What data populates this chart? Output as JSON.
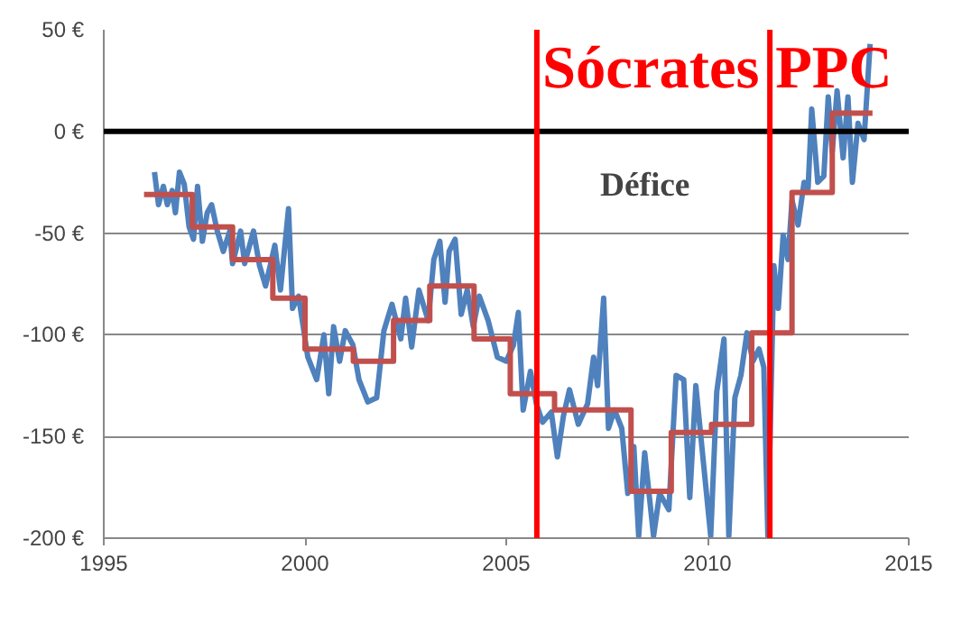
{
  "chart_data": {
    "type": "line",
    "xlim": [
      1995,
      2015
    ],
    "xticks": [
      1995,
      2000,
      2005,
      2010,
      2015
    ],
    "ylim": [
      -200,
      50
    ],
    "yticks": [
      {
        "value": 50,
        "label": "50 €"
      },
      {
        "value": 0,
        "label": "0 €"
      },
      {
        "value": -50,
        "label": "-50 €"
      },
      {
        "value": -100,
        "label": "-100 €"
      },
      {
        "value": -150,
        "label": "-150 €"
      },
      {
        "value": -200,
        "label": "-200 €"
      }
    ],
    "grid": "y",
    "marker": "none",
    "line_style": "solid",
    "series": [
      {
        "color": "#4f81bd",
        "x": [
          1996.26,
          1996.36,
          1996.48,
          1996.58,
          1996.7,
          1996.78,
          1996.88,
          1997.0,
          1997.12,
          1997.23,
          1997.33,
          1997.45,
          1997.57,
          1997.68,
          1997.82,
          1997.97,
          1998.13,
          1998.2,
          1998.4,
          1998.5,
          1998.72,
          1998.87,
          1999.02,
          1999.25,
          1999.39,
          1999.59,
          1999.69,
          1999.84,
          2000.07,
          2000.29,
          2000.47,
          2000.59,
          2000.71,
          2000.86,
          2001.0,
          2001.19,
          2001.34,
          2001.56,
          2001.78,
          2001.96,
          2002.16,
          2002.38,
          2002.5,
          2002.65,
          2002.83,
          2003.06,
          2003.2,
          2003.35,
          2003.48,
          2003.58,
          2003.73,
          2003.88,
          2004.03,
          2004.18,
          2004.33,
          2004.55,
          2004.78,
          2005.0,
          2005.18,
          2005.3,
          2005.42,
          2005.6,
          2005.75,
          2005.9,
          2006.12,
          2006.27,
          2006.42,
          2006.57,
          2006.79,
          2007.02,
          2007.17,
          2007.27,
          2007.42,
          2007.54,
          2007.69,
          2007.87,
          2008.02,
          2008.17,
          2008.29,
          2008.44,
          2008.66,
          2008.81,
          2009.04,
          2009.22,
          2009.41,
          2009.56,
          2009.71,
          2009.86,
          2010.08,
          2010.23,
          2010.41,
          2010.53,
          2010.68,
          2010.83,
          2010.98,
          2011.13,
          2011.28,
          2011.4,
          2011.5,
          2011.65,
          2011.76,
          2011.88,
          2012.0,
          2012.1,
          2012.25,
          2012.4,
          2012.5,
          2012.59,
          2012.74,
          2012.89,
          2013.0,
          2013.1,
          2013.22,
          2013.37,
          2013.49,
          2013.6,
          2013.74,
          2013.89,
          2014.04
        ],
        "values": [
          -20,
          -36,
          -27,
          -36,
          -29,
          -40,
          -20,
          -26,
          -47,
          -53,
          -27,
          -54,
          -40,
          -36,
          -49,
          -59,
          -49,
          -65,
          -49,
          -65,
          -49,
          -66,
          -76,
          -56,
          -78,
          -38,
          -87,
          -81,
          -111,
          -122,
          -100,
          -129,
          -96,
          -113,
          -98,
          -105,
          -122,
          -133,
          -131,
          -98,
          -85,
          -102,
          -82,
          -106,
          -78,
          -93,
          -63,
          -54,
          -84,
          -59,
          -53,
          -90,
          -78,
          -96,
          -81,
          -93,
          -111,
          -113,
          -105,
          -89,
          -137,
          -118,
          -134,
          -143,
          -138,
          -160,
          -140,
          -127,
          -144,
          -134,
          -111,
          -125,
          -82,
          -146,
          -137,
          -146,
          -178,
          -155,
          -199,
          -158,
          -199,
          -178,
          -186,
          -120,
          -122,
          -180,
          -125,
          -155,
          -199,
          -128,
          -102,
          -199,
          -131,
          -120,
          -99,
          -113,
          -107,
          -116,
          -199,
          -66,
          -87,
          -51,
          -63,
          -34,
          -46,
          -25,
          -28,
          11,
          -25,
          -22,
          17,
          -10,
          20,
          -13,
          17,
          -25,
          4,
          -4,
          43
        ]
      },
      {
        "type": "step",
        "color": "#c0504d",
        "x": [
          1996.0,
          1997.2,
          1998.2,
          1999.2,
          2000.0,
          2001.2,
          2002.2,
          2003.1,
          2004.2,
          2005.1,
          2006.2,
          2008.1,
          2009.1,
          2010.1,
          2011.1,
          2012.1,
          2013.1,
          2014.1
        ],
        "values": [
          -31,
          -47,
          -63,
          -82,
          -107,
          -113,
          -93,
          -76,
          -102,
          -129,
          -137,
          -177,
          -148,
          -144,
          -99,
          -30,
          9,
          9
        ]
      }
    ],
    "ref_lines": [
      {
        "axis": "y",
        "value": 0,
        "label": null,
        "color": "#000000",
        "line_style": "solid"
      },
      {
        "axis": "x",
        "value": 2005.76,
        "label": "Sócrates",
        "color": "#ff0000",
        "line_style": "solid"
      },
      {
        "axis": "x",
        "value": 2011.55,
        "label": "PPC",
        "color": "#ff0000",
        "line_style": "solid"
      }
    ],
    "annotations": [
      "Défice"
    ]
  }
}
